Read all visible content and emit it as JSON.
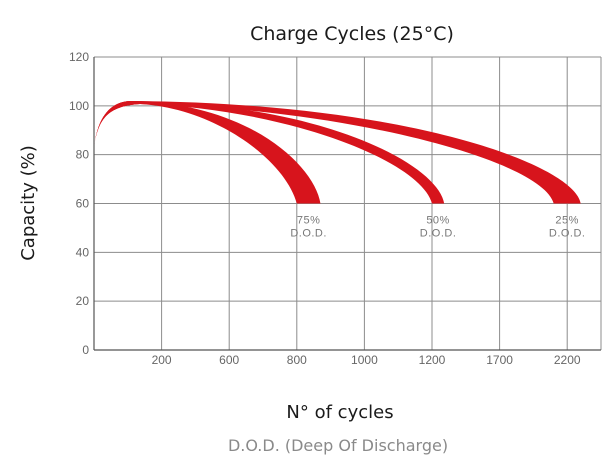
{
  "chart_data": {
    "type": "area",
    "title": "Charge Cycles (25°C)",
    "ylabel": "Capacity (%)",
    "xlabel": "N° of cycles",
    "subtitle": "D.O.D. (Deep Of Discharge)",
    "x_tick_labels": [
      "200",
      "600",
      "800",
      "1000",
      "1200",
      "1700",
      "2200"
    ],
    "y_ticks": [
      0,
      20,
      40,
      60,
      80,
      100,
      120
    ],
    "ylim": [
      0,
      120
    ],
    "grid": true,
    "series": [
      {
        "name": "75%",
        "label_line2": "D.O.D.",
        "peak": 102,
        "end_capacity": 60,
        "end_cycles_range": [
          800,
          870
        ]
      },
      {
        "name": "50%",
        "label_line2": "D.O.D.",
        "peak": 102,
        "end_capacity": 60,
        "end_cycles_range": [
          1200,
          1290
        ]
      },
      {
        "name": "25%",
        "label_line2": "D.O.D.",
        "peak": 102,
        "end_capacity": 60,
        "end_cycles_range": [
          2100,
          2300
        ]
      }
    ],
    "band_color": "#d7141c"
  }
}
